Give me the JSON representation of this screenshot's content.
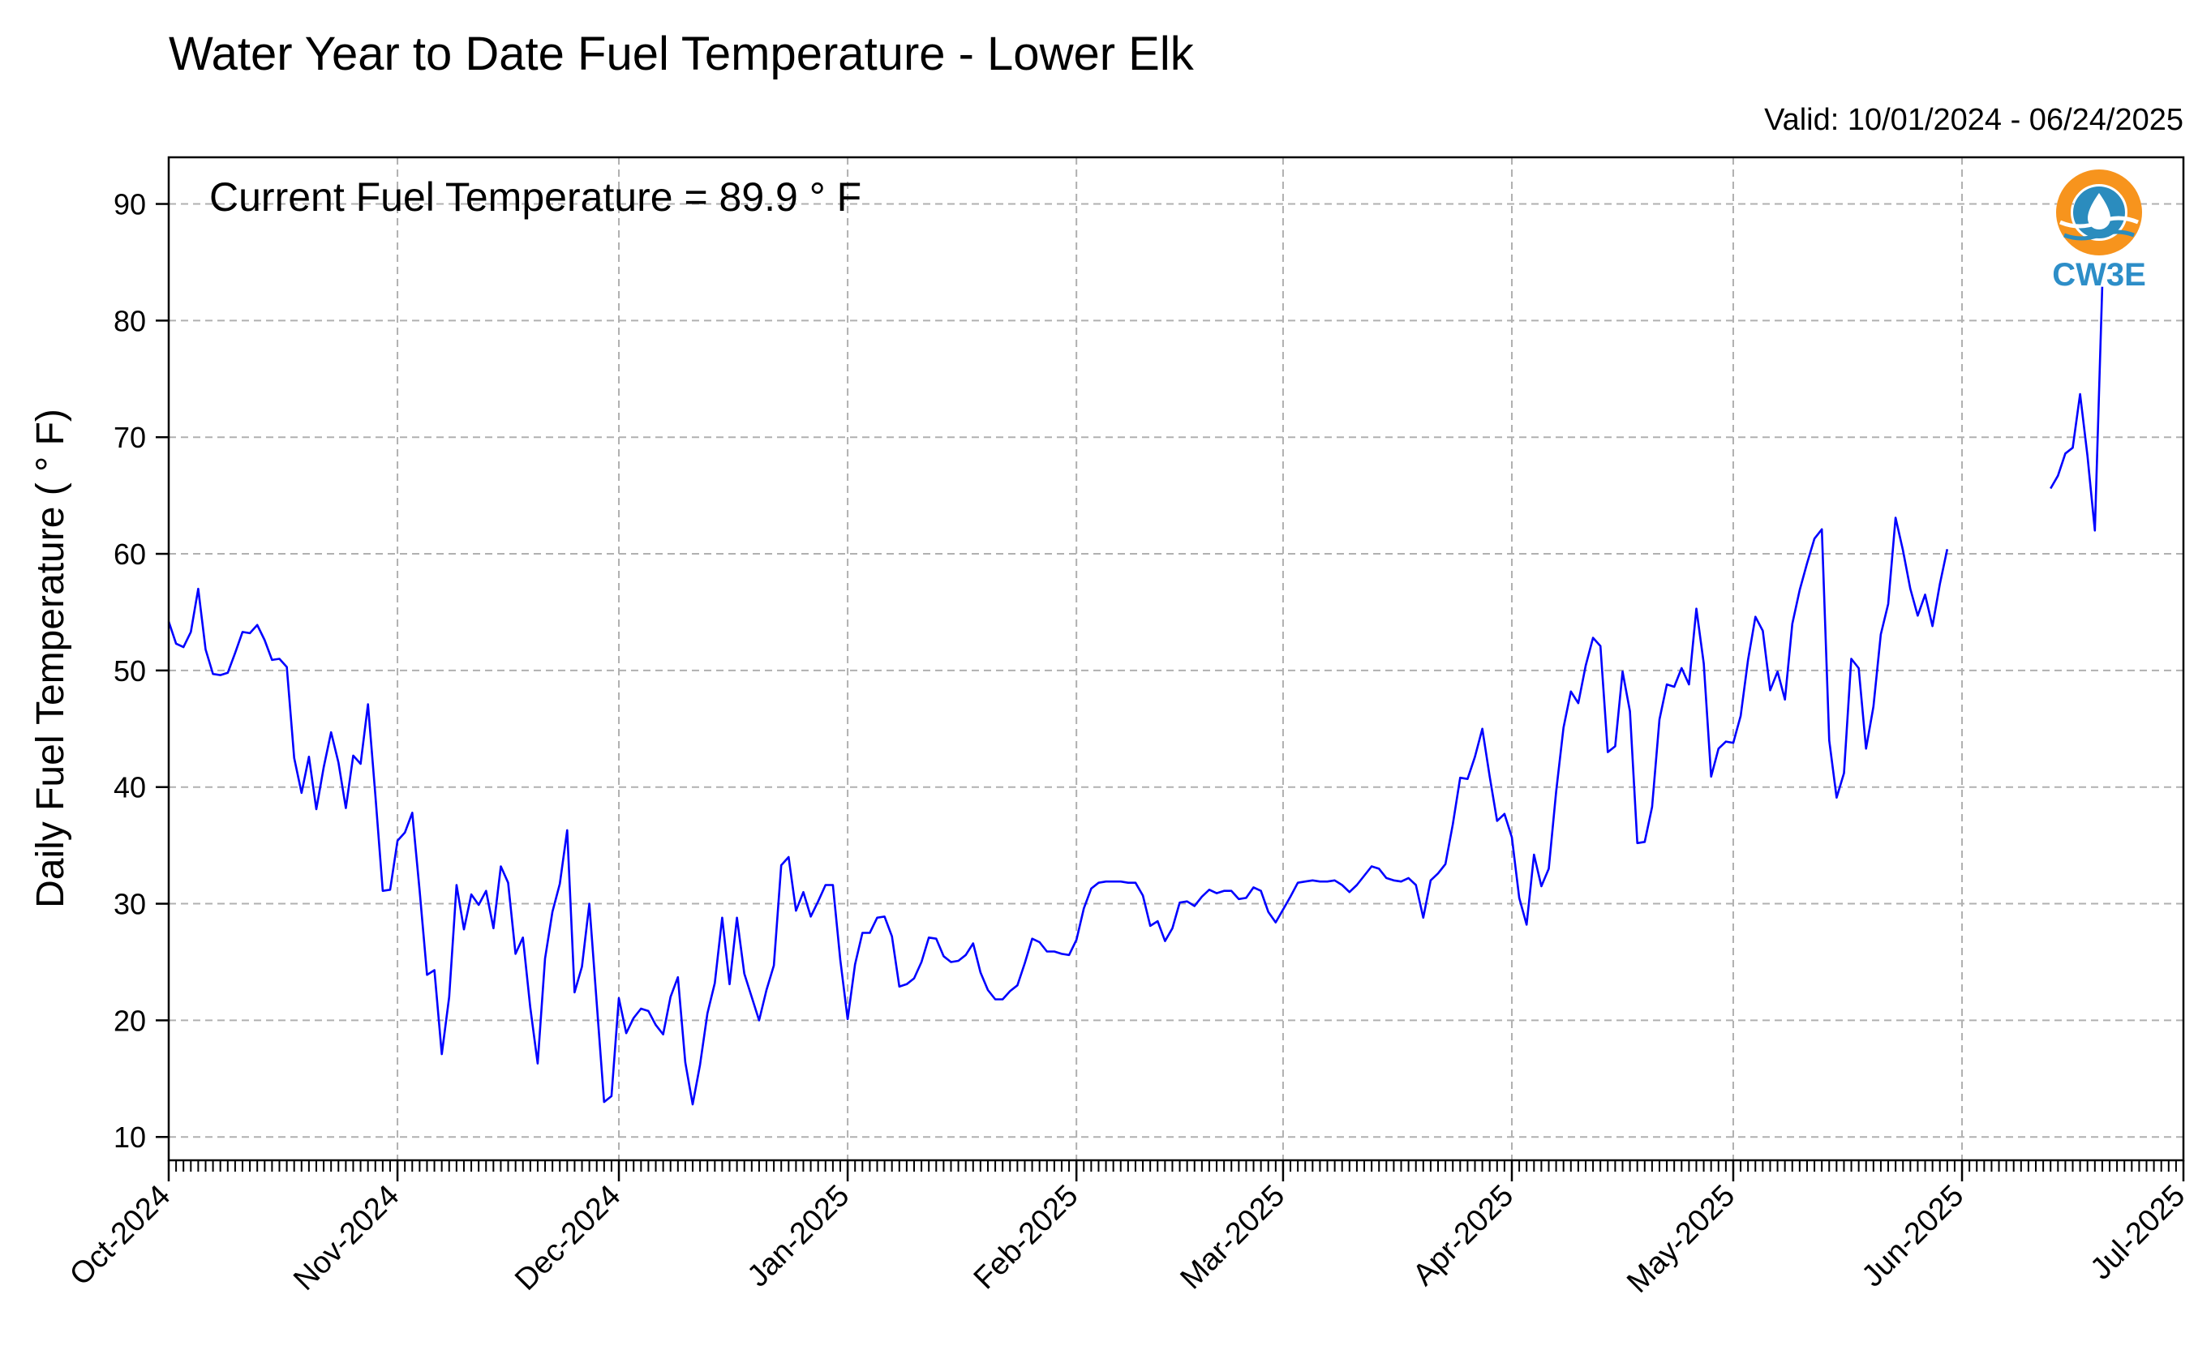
{
  "chart_data": {
    "type": "line",
    "title": "Water Year to Date Fuel Temperature - Lower Elk",
    "subtitle": "Valid: 10/01/2024 - 06/24/2025",
    "xlabel": "",
    "ylabel": "Daily Fuel Temperature ( ° F)",
    "annotation": "Current Fuel Temperature = 89.9  ° F",
    "grid": true,
    "ylim": [
      8,
      94
    ],
    "xlim": [
      "2024-10-01",
      "2025-07-01"
    ],
    "yticks": [
      10,
      20,
      30,
      40,
      50,
      60,
      70,
      80,
      90
    ],
    "xticks": [
      {
        "date": "2024-10-01",
        "label": "Oct-2024"
      },
      {
        "date": "2024-11-01",
        "label": "Nov-2024"
      },
      {
        "date": "2024-12-01",
        "label": "Dec-2024"
      },
      {
        "date": "2025-01-01",
        "label": "Jan-2025"
      },
      {
        "date": "2025-02-01",
        "label": "Feb-2025"
      },
      {
        "date": "2025-03-01",
        "label": "Mar-2025"
      },
      {
        "date": "2025-04-01",
        "label": "Apr-2025"
      },
      {
        "date": "2025-05-01",
        "label": "May-2025"
      },
      {
        "date": "2025-06-01",
        "label": "Jun-2025"
      },
      {
        "date": "2025-07-01",
        "label": "Jul-2025"
      }
    ],
    "series": [
      {
        "color": "#0000ff",
        "segments": [
          {
            "start_date": "2024-10-01",
            "values": [
              54.2,
              52.3,
              52.0,
              53.3,
              57.0,
              51.8,
              49.7,
              49.6,
              49.8,
              51.5,
              53.3,
              53.2,
              53.9,
              52.6,
              50.9,
              51.0,
              50.3,
              42.5,
              39.5,
              42.6,
              38.1,
              41.7,
              44.7,
              42.1,
              38.2,
              42.7,
              42.0,
              47.1,
              39.3,
              31.1,
              31.2,
              35.4,
              36.1,
              37.8,
              31.1,
              23.9,
              24.3,
              17.1,
              22.0,
              31.6,
              27.8,
              30.8,
              29.9,
              31.1,
              27.9,
              33.2,
              31.8,
              25.7,
              27.1,
              21.1,
              16.3,
              25.3,
              29.3,
              31.7,
              36.3,
              22.4,
              24.6,
              30.0,
              21.5,
              13.0,
              13.5,
              21.9,
              18.9,
              20.2,
              21.0,
              20.8,
              19.6,
              18.8,
              22.0,
              23.7,
              16.4,
              12.8,
              16.2,
              20.6,
              23.2,
              28.8,
              23.1,
              28.8,
              24.0,
              22.0,
              20.0,
              22.6,
              24.7,
              33.3,
              34.0,
              29.4,
              31.0,
              28.9,
              30.2,
              31.6,
              31.6,
              25.2,
              20.1,
              24.8,
              27.5,
              27.5,
              28.8,
              28.9,
              27.2,
              22.9,
              23.1,
              23.6,
              25.0,
              27.1,
              27.0,
              25.5,
              25.0,
              25.1,
              25.6,
              26.6,
              24.1,
              22.6,
              21.8,
              21.8,
              22.5,
              23.0,
              24.9,
              27.0,
              26.7,
              25.9,
              25.9,
              25.7,
              25.6,
              26.9,
              29.6,
              31.3,
              31.8,
              31.9,
              31.9,
              31.9,
              31.8,
              31.8,
              30.7,
              28.1,
              28.5,
              26.8,
              27.9,
              30.1,
              30.2,
              29.8,
              30.6,
              31.2,
              30.9,
              31.1,
              31.1,
              30.4,
              30.5,
              31.4,
              31.1,
              29.3,
              28.4,
              29.5,
              30.6,
              31.8,
              31.9,
              32.0,
              31.9,
              31.9,
              32.0,
              31.6,
              31.0,
              31.6,
              32.4,
              33.2,
              33.0,
              32.2,
              32.0,
              31.9,
              32.2,
              31.6,
              28.8,
              32.0,
              32.6,
              33.4,
              36.8,
              40.8,
              40.7,
              42.6,
              45.0,
              40.9,
              37.1,
              37.7,
              35.7,
              30.5,
              28.2,
              34.2,
              31.5,
              33.0,
              39.6,
              45.1,
              48.2,
              47.2,
              50.4,
              52.8,
              52.1,
              43.0,
              43.5,
              49.9,
              46.5,
              35.2,
              35.3,
              38.3,
              45.8,
              48.8,
              48.6,
              50.2,
              48.8,
              55.3,
              50.6,
              40.9,
              43.3,
              43.9,
              43.8,
              46.1,
              50.9,
              54.6,
              53.4,
              48.3,
              49.9,
              47.5,
              54.0,
              56.9,
              59.2,
              61.3,
              62.1,
              44.0,
              39.1,
              41.2,
              51.0,
              50.2,
              43.3,
              46.9,
              53.1,
              55.7,
              63.1,
              60.3,
              57.0,
              54.7,
              56.5,
              53.8,
              57.4,
              60.4
            ]
          },
          {
            "start_date": "2025-06-13",
            "values": [
              65.6,
              66.7,
              68.6,
              69.1,
              73.7,
              68.4,
              62.0,
              82.9
            ]
          }
        ]
      }
    ]
  },
  "logo": {
    "text": "CW3E",
    "colors": {
      "orange": "#f7941d",
      "blue": "#2b8cbe",
      "text": "#2d8ec8"
    }
  },
  "colors": {
    "line": "#0000ff",
    "grid": "#b0b0b0",
    "axis": "#000000"
  }
}
